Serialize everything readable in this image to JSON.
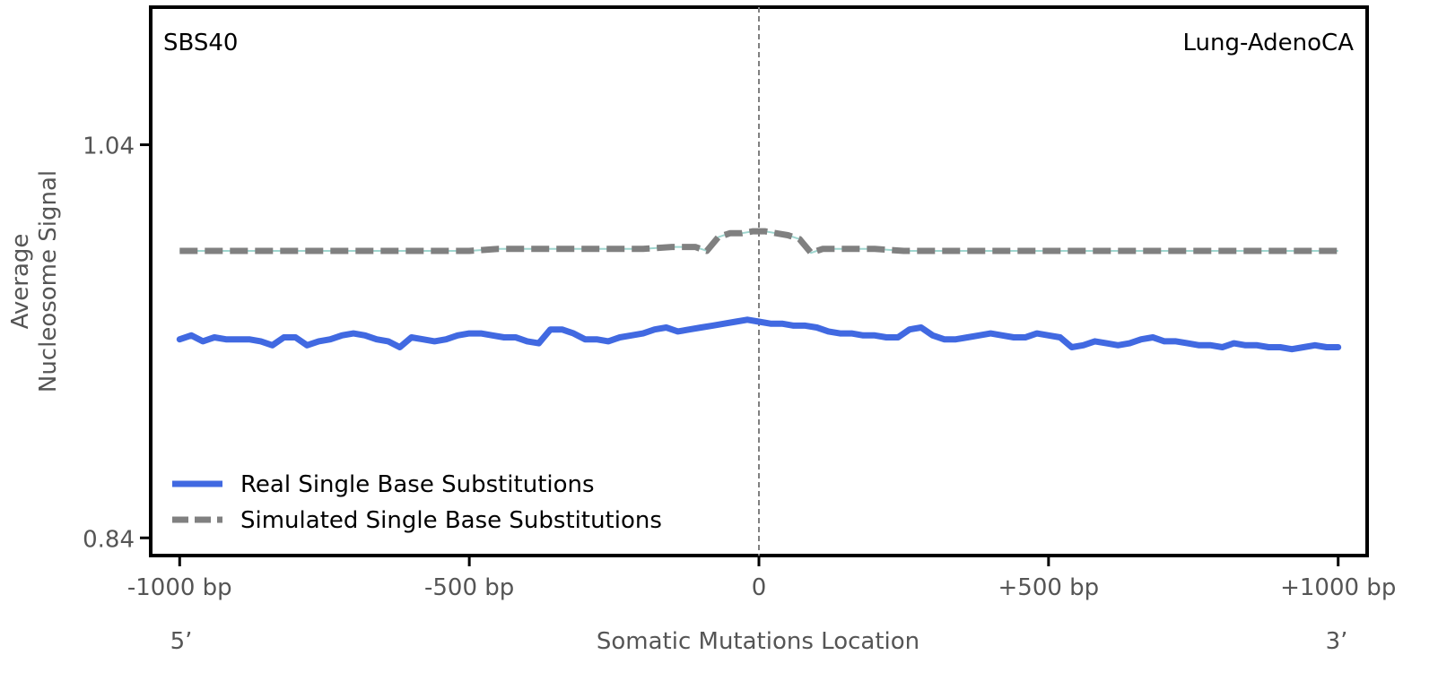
{
  "chart_data": {
    "type": "line",
    "signature_label": "SBS40",
    "cancer_type_label": "Lung-AdenoCA",
    "ylabel_line1": "Average",
    "ylabel_line2": "Nucleosome Signal",
    "xlabel": "Somatic Mutations Location",
    "five_prime_label": "5’",
    "three_prime_label": "3’",
    "xlim": [
      -1050,
      1050
    ],
    "ylim": [
      0.831,
      1.11
    ],
    "x_ticks": [
      {
        "value": -1000,
        "label": "-1000 bp"
      },
      {
        "value": -500,
        "label": "-500 bp"
      },
      {
        "value": 0,
        "label": "0"
      },
      {
        "value": 500,
        "label": "+500 bp"
      },
      {
        "value": 1000,
        "label": "+1000 bp"
      }
    ],
    "y_ticks": [
      {
        "value": 1.04,
        "label": "1.04"
      },
      {
        "value": 0.84,
        "label": "0.84"
      }
    ],
    "center_line_x": 0,
    "legend_position": "lower-left",
    "series": [
      {
        "name": "Real Single Base Substitutions",
        "color": "#4169E1",
        "style": "solid",
        "x": [
          -1000,
          -980,
          -960,
          -940,
          -920,
          -900,
          -880,
          -860,
          -840,
          -820,
          -800,
          -780,
          -760,
          -740,
          -720,
          -700,
          -680,
          -660,
          -640,
          -620,
          -600,
          -580,
          -560,
          -540,
          -520,
          -500,
          -480,
          -460,
          -440,
          -420,
          -400,
          -380,
          -360,
          -340,
          -320,
          -300,
          -280,
          -260,
          -240,
          -220,
          -200,
          -180,
          -160,
          -140,
          -120,
          -100,
          -80,
          -60,
          -40,
          -20,
          0,
          20,
          40,
          60,
          80,
          100,
          120,
          140,
          160,
          180,
          200,
          220,
          240,
          260,
          280,
          300,
          320,
          340,
          360,
          380,
          400,
          420,
          440,
          460,
          480,
          500,
          520,
          540,
          560,
          580,
          600,
          620,
          640,
          660,
          680,
          700,
          720,
          740,
          760,
          780,
          800,
          820,
          840,
          860,
          880,
          900,
          920,
          940,
          960,
          980,
          1000
        ],
        "y": [
          0.941,
          0.943,
          0.94,
          0.942,
          0.941,
          0.941,
          0.941,
          0.94,
          0.938,
          0.942,
          0.942,
          0.938,
          0.94,
          0.941,
          0.943,
          0.944,
          0.943,
          0.941,
          0.94,
          0.937,
          0.942,
          0.941,
          0.94,
          0.941,
          0.943,
          0.944,
          0.944,
          0.943,
          0.942,
          0.942,
          0.94,
          0.939,
          0.946,
          0.946,
          0.944,
          0.941,
          0.941,
          0.94,
          0.942,
          0.943,
          0.944,
          0.946,
          0.947,
          0.945,
          0.946,
          0.947,
          0.948,
          0.949,
          0.95,
          0.951,
          0.95,
          0.949,
          0.949,
          0.948,
          0.948,
          0.947,
          0.945,
          0.944,
          0.944,
          0.943,
          0.943,
          0.942,
          0.942,
          0.946,
          0.947,
          0.943,
          0.941,
          0.941,
          0.942,
          0.943,
          0.944,
          0.943,
          0.942,
          0.942,
          0.944,
          0.943,
          0.942,
          0.937,
          0.938,
          0.94,
          0.939,
          0.938,
          0.939,
          0.941,
          0.942,
          0.94,
          0.94,
          0.939,
          0.938,
          0.938,
          0.937,
          0.939,
          0.938,
          0.938,
          0.937,
          0.937,
          0.936,
          0.937,
          0.938,
          0.937,
          0.937
        ]
      },
      {
        "name": "Simulated Single Base Substitutions",
        "color": "#808080",
        "style": "dashed",
        "x": [
          -1000,
          -950,
          -900,
          -850,
          -800,
          -750,
          -700,
          -650,
          -600,
          -550,
          -500,
          -450,
          -400,
          -350,
          -300,
          -250,
          -200,
          -150,
          -110,
          -90,
          -70,
          -50,
          -30,
          -10,
          0,
          10,
          30,
          50,
          70,
          90,
          110,
          150,
          200,
          250,
          300,
          350,
          400,
          450,
          500,
          550,
          600,
          650,
          700,
          750,
          800,
          850,
          900,
          950,
          1000
        ],
        "y": [
          0.986,
          0.986,
          0.986,
          0.986,
          0.986,
          0.986,
          0.986,
          0.986,
          0.986,
          0.986,
          0.986,
          0.987,
          0.987,
          0.987,
          0.987,
          0.987,
          0.987,
          0.988,
          0.988,
          0.986,
          0.993,
          0.995,
          0.995,
          0.996,
          0.996,
          0.996,
          0.995,
          0.994,
          0.992,
          0.985,
          0.987,
          0.987,
          0.987,
          0.986,
          0.986,
          0.986,
          0.986,
          0.986,
          0.986,
          0.986,
          0.986,
          0.986,
          0.986,
          0.986,
          0.986,
          0.986,
          0.986,
          0.986,
          0.986
        ]
      }
    ]
  }
}
